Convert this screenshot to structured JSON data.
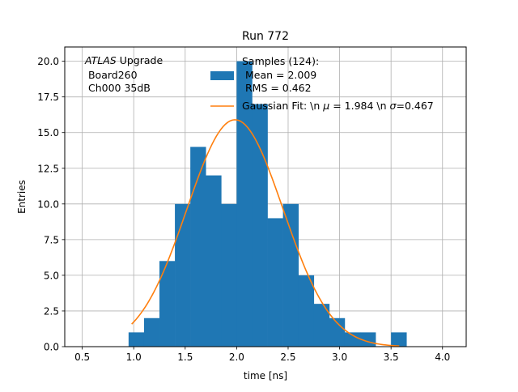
{
  "chart_data": {
    "type": "bar",
    "title": "Run 772",
    "xlabel": "time [ns]",
    "ylabel": "Entries",
    "xlim": [
      0.33,
      4.23
    ],
    "ylim": [
      0,
      21
    ],
    "xticks": [
      0.5,
      1.0,
      1.5,
      2.0,
      2.5,
      3.0,
      3.5,
      4.0
    ],
    "xtick_labels": [
      "0.5",
      "1.0",
      "1.5",
      "2.0",
      "2.5",
      "3.0",
      "3.5",
      "4.0"
    ],
    "yticks": [
      0,
      2.5,
      5,
      7.5,
      10,
      12.5,
      15,
      17.5,
      20
    ],
    "ytick_labels": [
      "0.0",
      "2.5",
      "5.0",
      "7.5",
      "10.0",
      "12.5",
      "15.0",
      "17.5",
      "20.0"
    ],
    "grid": true,
    "legend_position": "top-right",
    "annotation": {
      "italic": "ATLAS",
      "rest": " Upgrade",
      "line2": " Board260",
      "line3": " Ch000 35dB"
    },
    "histogram": {
      "name_lines": [
        "Samples (124):",
        " Mean = 2.009",
        " RMS = 0.462"
      ],
      "color": "#1f77b4",
      "bins": [
        {
          "x0": 0.95,
          "x1": 1.1,
          "count": 1
        },
        {
          "x0": 1.1,
          "x1": 1.25,
          "count": 2
        },
        {
          "x0": 1.25,
          "x1": 1.4,
          "count": 6
        },
        {
          "x0": 1.4,
          "x1": 1.55,
          "count": 10
        },
        {
          "x0": 1.55,
          "x1": 1.7,
          "count": 14
        },
        {
          "x0": 1.7,
          "x1": 1.85,
          "count": 12
        },
        {
          "x0": 1.85,
          "x1": 2.0,
          "count": 10
        },
        {
          "x0": 2.0,
          "x1": 2.15,
          "count": 20
        },
        {
          "x0": 2.15,
          "x1": 2.3,
          "count": 17
        },
        {
          "x0": 2.3,
          "x1": 2.45,
          "count": 9
        },
        {
          "x0": 2.45,
          "x1": 2.6,
          "count": 10
        },
        {
          "x0": 2.6,
          "x1": 2.75,
          "count": 5
        },
        {
          "x0": 2.75,
          "x1": 2.9,
          "count": 3
        },
        {
          "x0": 2.9,
          "x1": 3.05,
          "count": 2
        },
        {
          "x0": 3.05,
          "x1": 3.2,
          "count": 1
        },
        {
          "x0": 3.2,
          "x1": 3.35,
          "count": 1
        },
        {
          "x0": 3.35,
          "x1": 3.5,
          "count": 0
        },
        {
          "x0": 3.5,
          "x1": 3.65,
          "count": 1
        }
      ]
    },
    "fit": {
      "label": "Gaussian Fit: \\n $\\mu$ = 1.984 \\n $\\sigma$=0.467",
      "label_parts": [
        "Gaussian Fit: \\n ",
        "μ",
        " = 1.984 \\n ",
        "σ",
        "=0.467"
      ],
      "color": "#ff7f0e",
      "mu": 1.984,
      "sigma": 0.467,
      "amplitude": 15.9,
      "x_range": [
        0.98,
        3.58
      ]
    }
  }
}
